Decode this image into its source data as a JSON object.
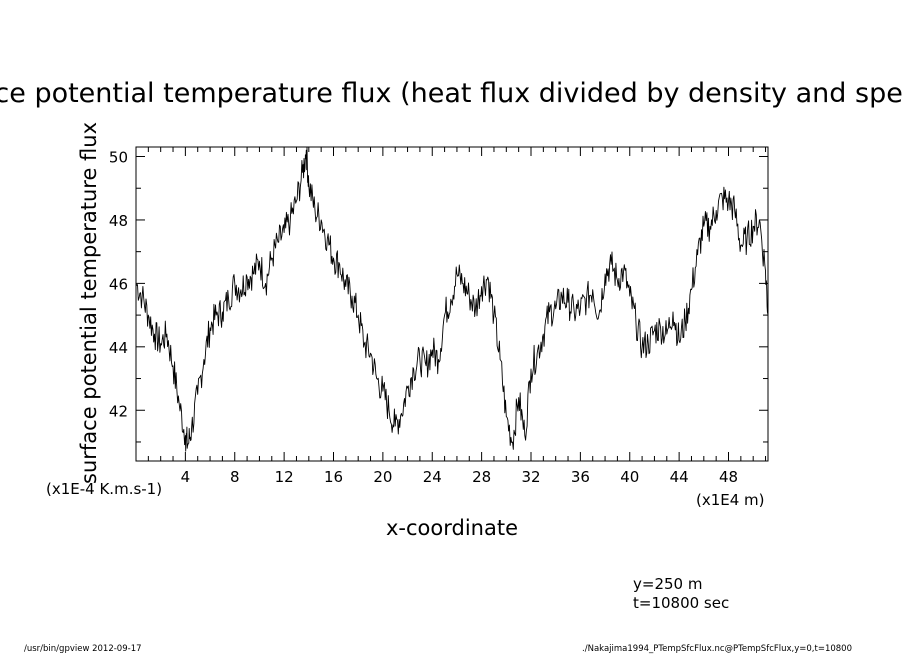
{
  "chart_data": {
    "type": "line",
    "title": "Surface potential temperature flux (heat flux divided by density and specific heat)",
    "xlabel": "x-coordinate",
    "ylabel": "surface potential temperature flux",
    "x_unit": "(x1E4 m)",
    "y_unit": "(x1E-4 K.m.s-1)",
    "xlim": [
      0,
      51.2
    ],
    "ylim": [
      40.4,
      50.3
    ],
    "x_ticks": [
      4,
      8,
      12,
      16,
      20,
      24,
      28,
      32,
      36,
      40,
      44,
      48
    ],
    "y_ticks": [
      42,
      44,
      46,
      48,
      50
    ],
    "grid": false,
    "series": [
      {
        "x": [
          0,
          0.5,
          1,
          1.5,
          2,
          2.5,
          3,
          3.5,
          4,
          4.2,
          4.5,
          5,
          5.5,
          6,
          6.5,
          7,
          7.5,
          8,
          8.5,
          9,
          9.5,
          10,
          10.5,
          11,
          11.5,
          12,
          12.5,
          13,
          13.5,
          13.8,
          14,
          14.5,
          15,
          15.5,
          16,
          16.5,
          17,
          17.5,
          18,
          18.5,
          19,
          19.5,
          20,
          20.5,
          21,
          21.5,
          22,
          22.5,
          23,
          23.5,
          24,
          24.5,
          25,
          25.5,
          26,
          26.5,
          27,
          27.5,
          28,
          28.5,
          29,
          29.5,
          30,
          30.5,
          31,
          31.5,
          32,
          32.5,
          33,
          33.5,
          34,
          34.5,
          35,
          35.5,
          36,
          36.5,
          37,
          37.5,
          38,
          38.5,
          39,
          39.5,
          40,
          40.5,
          41,
          41.5,
          42,
          42.5,
          43,
          43.5,
          44,
          44.5,
          45,
          45.5,
          46,
          46.5,
          47,
          47.5,
          48,
          48.5,
          49,
          49.5,
          50,
          50.5,
          51,
          51.2
        ],
        "y": [
          46.0,
          45.6,
          45.0,
          44.4,
          44.1,
          44.4,
          43.4,
          42.2,
          41.2,
          40.9,
          41.4,
          42.5,
          43.6,
          44.6,
          45.0,
          45.1,
          45.5,
          46.0,
          45.8,
          46.2,
          46.3,
          46.7,
          46.0,
          46.8,
          47.3,
          47.6,
          48.0,
          48.6,
          49.5,
          50.2,
          49.1,
          48.3,
          48.0,
          47.4,
          46.8,
          46.6,
          45.9,
          45.6,
          45.0,
          44.1,
          43.8,
          43.0,
          42.6,
          42.0,
          41.5,
          41.9,
          42.7,
          43.3,
          43.6,
          43.4,
          43.9,
          43.6,
          45.0,
          45.5,
          46.3,
          46.0,
          45.6,
          45.2,
          45.9,
          46.2,
          45.0,
          43.6,
          41.8,
          41.0,
          42.4,
          41.2,
          43.3,
          43.8,
          44.4,
          45.1,
          45.2,
          45.6,
          45.4,
          45.1,
          45.2,
          45.5,
          45.8,
          45.0,
          46.3,
          46.6,
          46.1,
          46.4,
          45.6,
          44.8,
          44.0,
          44.1,
          44.5,
          44.6,
          44.4,
          45.1,
          44.2,
          44.8,
          45.8,
          46.9,
          47.8,
          47.8,
          48.3,
          48.7,
          48.6,
          48.3,
          47.2,
          47.4,
          47.8,
          48.0,
          46.4,
          45.0
        ]
      }
    ]
  },
  "annotations": {
    "y_value": "y=250 m",
    "t_value": "t=10800 sec"
  },
  "footer": {
    "left": "/usr/bin/gpview  2012-09-17",
    "right": "./Nakajima1994_PTempSfcFlux.nc@PTempSfcFlux,y=0,t=10800"
  }
}
